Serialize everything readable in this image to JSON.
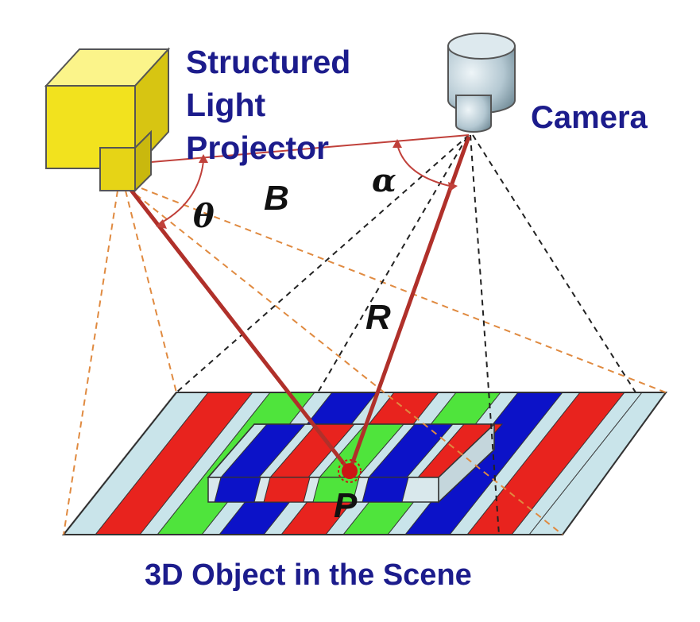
{
  "labels": {
    "projector_line1": "Structured",
    "projector_line2": "Light",
    "projector_line3": "Projector",
    "camera": "Camera",
    "scene": "3D Object in the Scene",
    "baseline": "B",
    "range": "R",
    "point": "P",
    "theta": "θ",
    "alpha": "α"
  },
  "colors": {
    "label_blue": "#1c1c8c",
    "ray_red": "#b0302a",
    "stripe_red": "#e8231e",
    "stripe_green": "#4fe43c",
    "stripe_blue": "#0c12c8",
    "stripe_light": "#c9e4ea",
    "projector_yellow": "#f2e21e",
    "camera_grey": "#b4c8d2",
    "dashed_orange": "#e08a40",
    "dashed_black": "#222222"
  }
}
